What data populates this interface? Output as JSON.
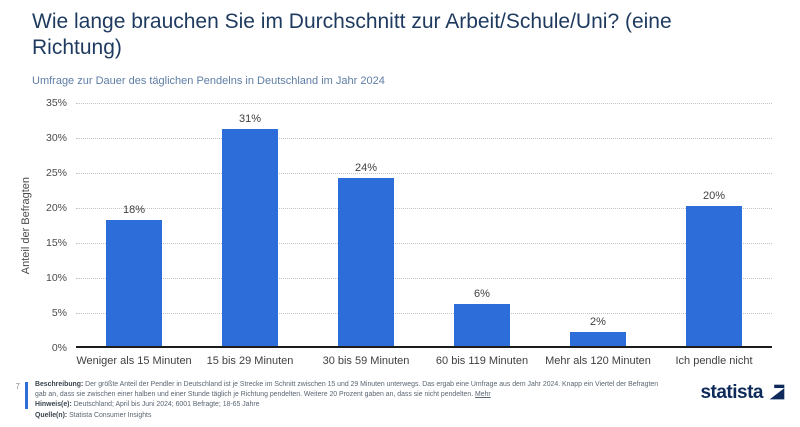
{
  "header": {
    "title": "Wie lange brauchen Sie im Durchschnitt zur Arbeit/Schule/Uni? (eine Richtung)",
    "subtitle": "Umfrage zur Dauer des täglichen Pendelns in Deutschland im Jahr 2024"
  },
  "chart_data": {
    "type": "bar",
    "title": "Wie lange brauchen Sie im Durchschnitt zur Arbeit/Schule/Uni? (eine Richtung)",
    "subtitle": "Umfrage zur Dauer des täglichen Pendelns in Deutschland im Jahr 2024",
    "categories": [
      "Weniger als 15 Minuten",
      "15 bis 29 Minuten",
      "30 bis 59 Minuten",
      "60 bis 119 Minuten",
      "Mehr als 120 Minuten",
      "Ich pendle nicht"
    ],
    "values": [
      18,
      31,
      24,
      6,
      2,
      20
    ],
    "value_labels": [
      "18%",
      "31%",
      "24%",
      "6%",
      "2%",
      "20%"
    ],
    "xlabel": "",
    "ylabel": "Anteil der Befragten",
    "ylim": [
      0,
      35
    ],
    "ytick_interval": 5,
    "ytick_labels": [
      "0%",
      "5%",
      "10%",
      "15%",
      "20%",
      "25%",
      "30%",
      "35%"
    ],
    "grid": "horizontal-dotted",
    "legend_position": "none",
    "bar_color": "#2d6dd9"
  },
  "footer": {
    "page_number": "7",
    "description_label": "Beschreibung:",
    "description_text": "Der größte Anteil der Pendler in Deutschland ist je Strecke im Schnitt zwischen 15 und 29 Minuten unterwegs. Das ergab eine Umfrage aus dem Jahr 2024. Knapp ein Viertel der Befragten gab an, dass sie zwischen einer halben und einer Stunde täglich je Richtung pendelten. Weitere 20 Prozent gaben an, dass sie nicht pendelten.",
    "more_link": "Mehr",
    "notes_label": "Hinweis(e):",
    "notes_text": "Deutschland; April bis Juni 2024; 6001 Befragte; 18-65 Jahre",
    "source_label": "Quelle(n):",
    "source_text": "Statista Consumer Insights",
    "brand": "statista"
  },
  "colors": {
    "accent_blue": "#2d6dd9",
    "title_text": "#1e3a5f",
    "subtitle_text": "#5e7da6",
    "axis_text": "#4a4a4a",
    "gridline": "#c4c4c4",
    "baseline": "#1c1c1c",
    "footer_text": "#5a6672",
    "logo_navy": "#0f2b5b"
  }
}
